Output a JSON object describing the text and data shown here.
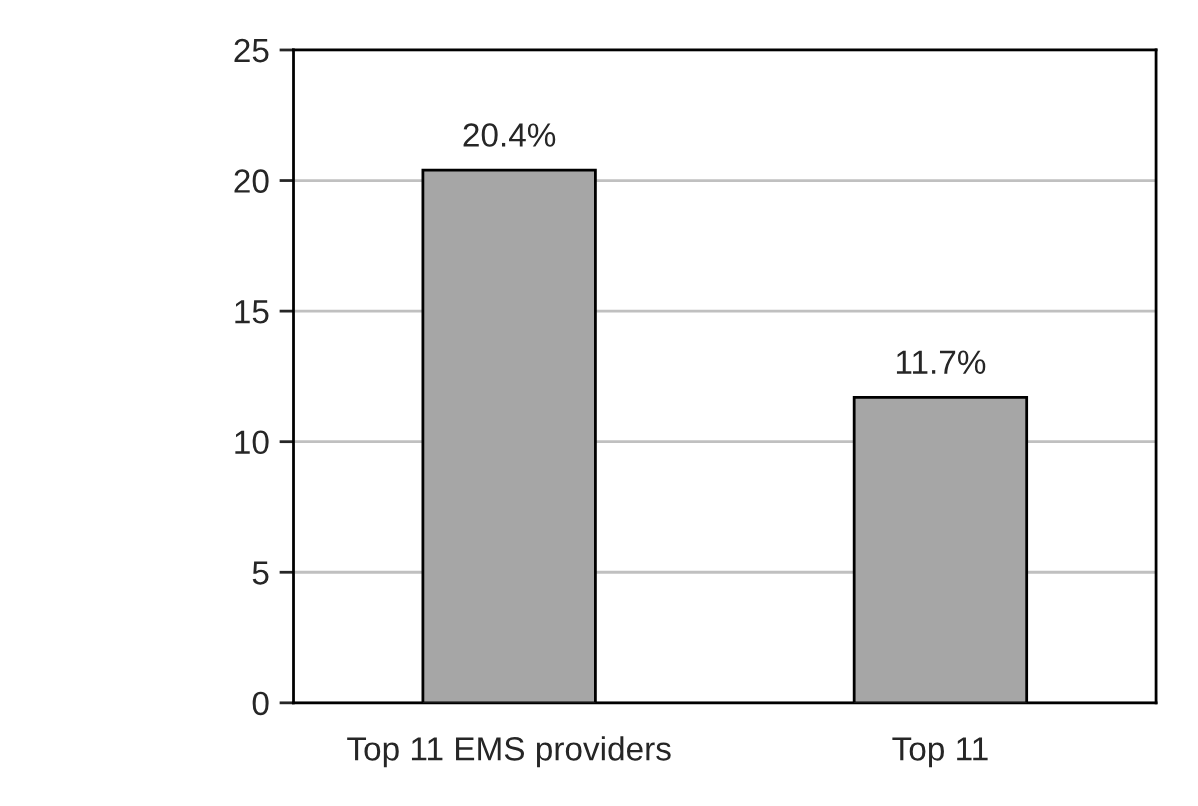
{
  "chart_data": {
    "type": "bar",
    "categories": [
      "Top 11 EMS providers",
      "Top 11"
    ],
    "values": [
      20.4,
      11.7
    ],
    "value_labels": [
      "20.4%",
      "11.7%"
    ],
    "color": "#a6a6a6",
    "ylim": [
      0,
      25
    ],
    "yticks": [
      0,
      5,
      10,
      15,
      20,
      25
    ],
    "grid": "y",
    "legend": false
  }
}
